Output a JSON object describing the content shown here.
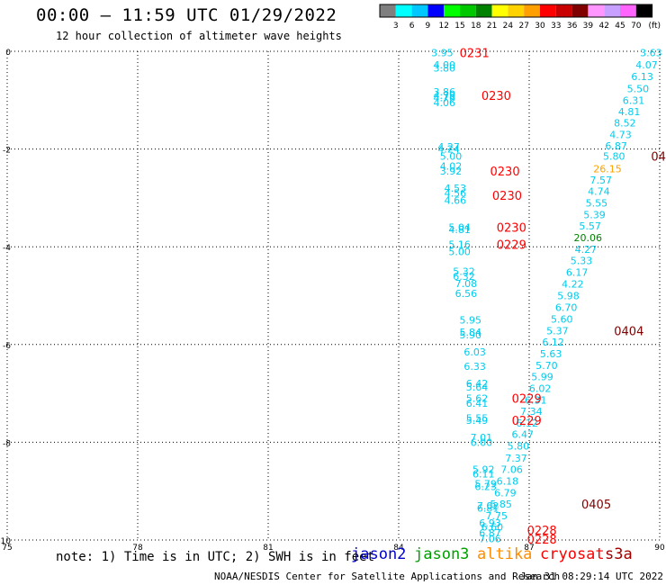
{
  "header": {
    "title": "00:00 – 11:59 UTC 01/29/2022",
    "subtitle": "12 hour collection of altimeter wave heights"
  },
  "colorbar": {
    "labels": [
      "3",
      "6",
      "9",
      "12",
      "15",
      "18",
      "21",
      "24",
      "27",
      "30",
      "33",
      "36",
      "39",
      "42",
      "45",
      "70"
    ],
    "unit": "(ft)",
    "colors": [
      "#7f7f7f",
      "#00ffff",
      "#00c8ff",
      "#0000ff",
      "#00ff00",
      "#00c800",
      "#008200",
      "#ffff00",
      "#ffd200",
      "#ffa000",
      "#ff0000",
      "#c80000",
      "#800000",
      "#ff96ff",
      "#c8a0ff",
      "#ff64ff",
      "#000000"
    ]
  },
  "footer": {
    "note": "note: 1) Time is in UTC; 2) SWH is in feet",
    "credit": "NOAA/NESDIS Center for Satellite Applications and Research",
    "stamp": "Jan 31 08:29:14 UTC 2022"
  },
  "satellites": [
    {
      "name": "jason2",
      "color": "#0000cc"
    },
    {
      "name": "jason3",
      "color": "#00a000"
    },
    {
      "name": "altika",
      "color": "#ff8c00"
    },
    {
      "name": "cryosat",
      "color": "#ff0000"
    },
    {
      "name": "s3a",
      "color": "#a00000"
    }
  ],
  "chart_data": {
    "type": "scatter",
    "xlim": [
      75,
      90
    ],
    "ylim": [
      -10,
      0
    ],
    "x_ticks": [
      "75",
      "78",
      "81",
      "84",
      "87",
      "90"
    ],
    "y_ticks": [
      "0",
      "-2",
      "-4",
      "-6",
      "-8",
      "-10"
    ],
    "grid": true,
    "series": [
      {
        "name": "jason2",
        "color": "#00ccee",
        "points": [
          [
            85.0,
            -0.03,
            "3.95"
          ],
          [
            85.05,
            -0.28,
            "4.00"
          ],
          [
            85.05,
            -0.34,
            "3.80"
          ],
          [
            85.05,
            -0.83,
            "3.86"
          ],
          [
            85.05,
            -0.9,
            "4.79"
          ],
          [
            85.05,
            -0.95,
            "4.76"
          ],
          [
            85.05,
            -1.05,
            "4.06"
          ],
          [
            85.15,
            -1.95,
            "4.27"
          ],
          [
            85.15,
            -2.0,
            "4.24"
          ],
          [
            85.2,
            -2.15,
            "5.00"
          ],
          [
            85.2,
            -2.35,
            "4.02"
          ],
          [
            85.2,
            -2.45,
            "3.92"
          ],
          [
            85.3,
            -2.8,
            "4.53"
          ],
          [
            85.3,
            -2.9,
            "4.56"
          ],
          [
            85.3,
            -3.05,
            "4.66"
          ],
          [
            85.4,
            -3.6,
            "5.04"
          ],
          [
            85.4,
            -3.65,
            "4.81"
          ],
          [
            85.4,
            -3.95,
            "5.16"
          ],
          [
            85.4,
            -4.1,
            "5.00"
          ],
          [
            85.5,
            -4.5,
            "5.32"
          ],
          [
            85.5,
            -4.6,
            "6.32"
          ],
          [
            85.55,
            -4.75,
            "7.08"
          ],
          [
            85.55,
            -4.95,
            "6.56"
          ],
          [
            85.65,
            -5.5,
            "5.95"
          ],
          [
            85.65,
            -5.75,
            "5.84"
          ],
          [
            85.65,
            -5.8,
            "5.90"
          ],
          [
            85.75,
            -6.15,
            "6.03"
          ],
          [
            85.75,
            -6.45,
            "6.33"
          ],
          [
            85.8,
            -6.8,
            "6.42"
          ],
          [
            85.8,
            -6.87,
            "5.64"
          ],
          [
            85.8,
            -7.1,
            "5.62"
          ],
          [
            85.8,
            -7.2,
            "6.41"
          ],
          [
            85.8,
            -7.5,
            "5.55"
          ],
          [
            85.8,
            -7.55,
            "5.49"
          ],
          [
            85.9,
            -7.9,
            "7.01"
          ],
          [
            85.9,
            -8.0,
            "6.00"
          ],
          [
            85.95,
            -8.55,
            "5.92"
          ],
          [
            85.95,
            -8.65,
            "6.11"
          ],
          [
            86.0,
            -8.85,
            "5.79"
          ],
          [
            86.0,
            -8.9,
            "6.23"
          ],
          [
            86.05,
            -9.3,
            "7.02"
          ],
          [
            86.05,
            -9.35,
            "6.81"
          ],
          [
            86.1,
            -9.65,
            "6.93"
          ],
          [
            86.1,
            -9.85,
            "6.87"
          ]
        ]
      },
      {
        "name": "jason3",
        "color": "#00ccee",
        "points": [
          [
            89.8,
            -0.03,
            "3.63"
          ],
          [
            89.7,
            -0.28,
            "4.07"
          ],
          [
            89.6,
            -0.52,
            "6.13"
          ],
          [
            89.5,
            -0.76,
            "5.50"
          ],
          [
            89.4,
            -1.0,
            "6.31"
          ],
          [
            89.3,
            -1.23,
            "4.81"
          ],
          [
            89.2,
            -1.46,
            "8.52"
          ],
          [
            89.1,
            -1.7,
            "4.73"
          ],
          [
            89.0,
            -1.93,
            "6.87"
          ],
          [
            88.95,
            -2.15,
            "5.80"
          ],
          [
            88.65,
            -2.63,
            "7.57"
          ],
          [
            88.6,
            -2.86,
            "4.74"
          ],
          [
            88.55,
            -3.1,
            "5.55"
          ],
          [
            88.5,
            -3.34,
            "5.39"
          ],
          [
            88.4,
            -3.57,
            "5.57"
          ],
          [
            88.3,
            -4.05,
            "4.27"
          ],
          [
            88.2,
            -4.28,
            "5.33"
          ],
          [
            88.1,
            -4.52,
            "6.17"
          ],
          [
            88.0,
            -4.76,
            "4.22"
          ],
          [
            87.9,
            -5.0,
            "5.98"
          ],
          [
            87.85,
            -5.24,
            "6.70"
          ],
          [
            87.75,
            -5.48,
            "5.60"
          ],
          [
            87.65,
            -5.72,
            "5.37"
          ],
          [
            87.55,
            -5.95,
            "6.12"
          ],
          [
            87.5,
            -6.19,
            "5.63"
          ],
          [
            87.4,
            -6.43,
            "5.70"
          ],
          [
            87.3,
            -6.66,
            "5.99"
          ],
          [
            87.25,
            -6.9,
            "6.02"
          ],
          [
            87.15,
            -7.14,
            "6.31"
          ],
          [
            87.05,
            -7.37,
            "7.34"
          ],
          [
            86.95,
            -7.61,
            "6.12"
          ],
          [
            86.85,
            -7.84,
            "6.47"
          ],
          [
            86.75,
            -8.08,
            "5.80"
          ],
          [
            86.7,
            -8.32,
            "7.37"
          ],
          [
            86.6,
            -8.55,
            "7.06"
          ],
          [
            86.5,
            -8.79,
            "6.18"
          ],
          [
            86.45,
            -9.03,
            "6.79"
          ],
          [
            86.35,
            -9.26,
            "5.85"
          ],
          [
            86.25,
            -9.5,
            "7.75"
          ],
          [
            86.15,
            -9.73,
            "6.60"
          ],
          [
            86.1,
            -9.97,
            "7.06"
          ]
        ]
      },
      {
        "name": "s3a-highs",
        "color": "#ffa000",
        "points": [
          [
            88.8,
            -2.4,
            "26.15"
          ]
        ]
      },
      {
        "name": "s3a-highs-green",
        "color": "#008200",
        "points": [
          [
            88.35,
            -3.81,
            "20.06"
          ]
        ]
      }
    ],
    "time_labels": [
      {
        "x": 85.4,
        "y": -0.03,
        "text": "0231",
        "color": "#ff0000"
      },
      {
        "x": 85.9,
        "y": -0.9,
        "text": "0230",
        "color": "#ff0000"
      },
      {
        "x": 86.1,
        "y": -2.45,
        "text": "0230",
        "color": "#ff0000"
      },
      {
        "x": 86.15,
        "y": -2.95,
        "text": "0230",
        "color": "#ff0000"
      },
      {
        "x": 86.25,
        "y": -3.6,
        "text": "0230",
        "color": "#ff0000"
      },
      {
        "x": 86.25,
        "y": -3.95,
        "text": "0229",
        "color": "#ff0000"
      },
      {
        "x": 86.6,
        "y": -7.1,
        "text": "0229",
        "color": "#ff0000"
      },
      {
        "x": 86.6,
        "y": -7.55,
        "text": "0229",
        "color": "#ff0000"
      },
      {
        "x": 86.95,
        "y": -9.8,
        "text": "0228",
        "color": "#ff0000"
      },
      {
        "x": 86.95,
        "y": -9.98,
        "text": "0228",
        "color": "#ff0000"
      },
      {
        "x": 89.8,
        "y": -2.15,
        "text": "04",
        "color": "#800000"
      },
      {
        "x": 88.95,
        "y": -5.72,
        "text": "0404",
        "color": "#800000"
      },
      {
        "x": 88.2,
        "y": -9.26,
        "text": "0405",
        "color": "#800000"
      }
    ]
  }
}
